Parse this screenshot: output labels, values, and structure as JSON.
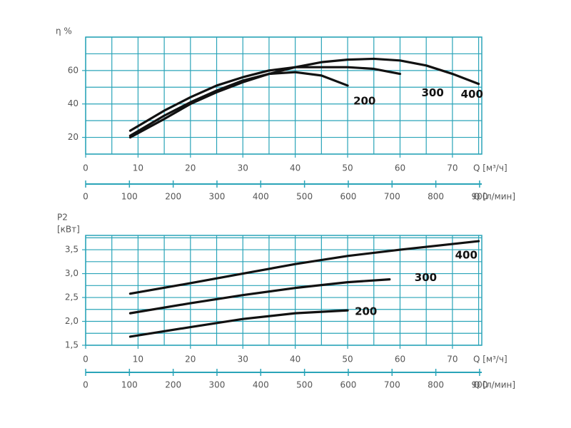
{
  "chart_data": [
    {
      "type": "line",
      "ylabel": [
        "η %"
      ],
      "xlabel": "Q [м³/ч]",
      "x2label": "Q [л/мин]",
      "xlim": [
        0,
        75.6
      ],
      "xticks": [
        0,
        10,
        20,
        30,
        40,
        50,
        60,
        70
      ],
      "x2lim": [
        0,
        905
      ],
      "x2ticks": [
        0,
        100,
        200,
        300,
        400,
        500,
        600,
        700,
        800,
        900
      ],
      "ylim": [
        10,
        80
      ],
      "yticks": [
        20,
        40,
        60
      ],
      "xgrid": [
        0,
        5,
        10,
        15,
        20,
        25,
        30,
        35,
        40,
        45,
        50,
        55,
        60,
        65,
        70,
        75
      ],
      "ygrid": [
        10,
        20,
        30,
        40,
        50,
        60,
        70,
        80
      ],
      "grid_color": "#2aa4b8",
      "series": [
        {
          "name": "200",
          "color": "#111111",
          "x": [
            8.5,
            15,
            20,
            25,
            30,
            35,
            40,
            45,
            50
          ],
          "values": [
            21,
            33,
            41,
            48,
            54,
            58,
            59,
            57,
            51
          ]
        },
        {
          "name": "300",
          "color": "#111111",
          "x": [
            8.5,
            15,
            20,
            25,
            30,
            35,
            40,
            45,
            50,
            55,
            60
          ],
          "values": [
            24,
            36,
            44,
            51,
            56,
            60,
            62,
            62,
            62,
            61,
            58
          ]
        },
        {
          "name": "400",
          "color": "#111111",
          "x": [
            8.5,
            15,
            20,
            25,
            30,
            35,
            40,
            45,
            50,
            55,
            60,
            65,
            70,
            75
          ],
          "values": [
            20,
            31,
            40,
            47,
            53,
            58,
            62,
            65,
            66.5,
            67,
            66,
            63,
            58,
            52
          ]
        }
      ]
    },
    {
      "type": "line",
      "ylabel": [
        "P2",
        "[кВт]"
      ],
      "xlabel": "Q [м³/ч]",
      "x2label": "Q [л/мин]",
      "xlim": [
        0,
        75.6
      ],
      "xticks": [
        0,
        10,
        20,
        30,
        40,
        50,
        60,
        70
      ],
      "x2lim": [
        0,
        905
      ],
      "x2ticks": [
        0,
        100,
        200,
        300,
        400,
        500,
        600,
        700,
        800,
        900
      ],
      "ylim": [
        1.5,
        3.8
      ],
      "yticks": [
        {
          "value": 1.5,
          "label": "1,5"
        },
        {
          "value": 2.0,
          "label": "2,0"
        },
        {
          "value": 2.5,
          "label": "2,5"
        },
        {
          "value": 3.0,
          "label": "3,0"
        },
        {
          "value": 3.5,
          "label": "3,5"
        }
      ],
      "xgrid": [
        0,
        5,
        10,
        15,
        20,
        25,
        30,
        35,
        40,
        45,
        50,
        55,
        60,
        65,
        70,
        75
      ],
      "ygrid": [
        1.5,
        1.75,
        2.0,
        2.25,
        2.5,
        2.75,
        3.0,
        3.25,
        3.5,
        3.75
      ],
      "grid_color": "#2aa4b8",
      "series": [
        {
          "name": "200",
          "color": "#111111",
          "x": [
            8.5,
            20,
            30,
            40,
            50
          ],
          "values": [
            1.68,
            1.88,
            2.05,
            2.17,
            2.23
          ]
        },
        {
          "name": "300",
          "color": "#111111",
          "x": [
            8.5,
            20,
            30,
            40,
            50,
            58
          ],
          "values": [
            2.17,
            2.38,
            2.55,
            2.7,
            2.82,
            2.88
          ]
        },
        {
          "name": "400",
          "color": "#111111",
          "x": [
            8.5,
            20,
            30,
            40,
            50,
            60,
            70,
            75
          ],
          "values": [
            2.58,
            2.8,
            3.0,
            3.2,
            3.37,
            3.5,
            3.62,
            3.68
          ]
        }
      ]
    }
  ]
}
